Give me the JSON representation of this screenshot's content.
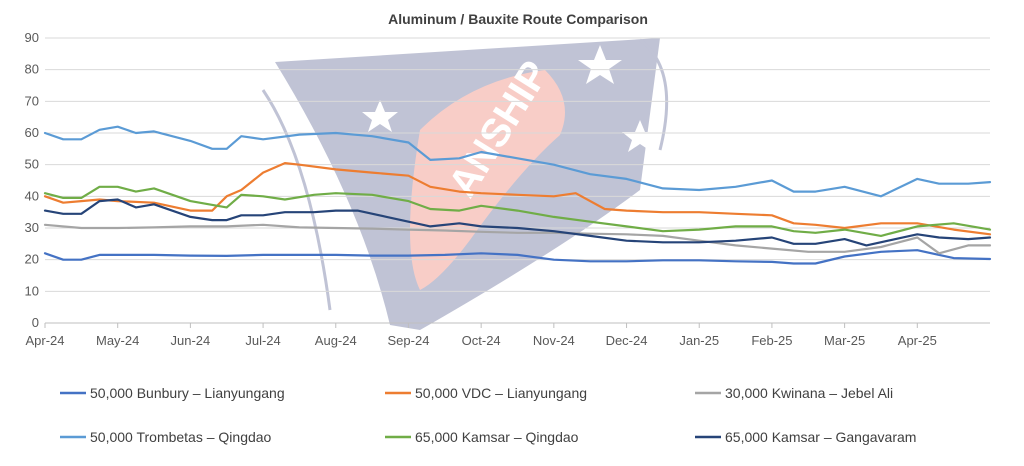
{
  "chart_data": {
    "type": "line",
    "title": "Aluminum / Bauxite Route Comparison",
    "xlabel": "",
    "ylabel": "",
    "ylim": [
      0,
      90
    ],
    "yticks": [
      0,
      10,
      20,
      30,
      40,
      50,
      60,
      70,
      80,
      90
    ],
    "xlim": [
      0,
      13
    ],
    "xtick_labels": [
      "Apr-24",
      "May-24",
      "Jun-24",
      "Jul-24",
      "Aug-24",
      "Sep-24",
      "Oct-24",
      "Nov-24",
      "Dec-24",
      "Jan-25",
      "Feb-25",
      "Mar-25",
      "Apr-25"
    ],
    "grid": "horizontal",
    "legend_position": "bottom",
    "series": [
      {
        "name": "50,000 Bunbury – Lianyungang",
        "color": "#4472c4",
        "x": [
          0,
          0.25,
          0.5,
          0.75,
          1,
          1.5,
          2,
          2.5,
          3,
          3.5,
          4,
          4.5,
          5,
          5.5,
          6,
          6.5,
          7,
          7.5,
          8,
          8.5,
          9,
          9.5,
          10,
          10.3,
          10.6,
          11,
          11.5,
          12,
          12.5,
          13
        ],
        "y": [
          22,
          20,
          20,
          21.5,
          21.5,
          21.5,
          21.3,
          21.2,
          21.5,
          21.5,
          21.5,
          21.3,
          21.3,
          21.5,
          22,
          21.5,
          20,
          19.5,
          19.5,
          19.8,
          19.8,
          19.5,
          19.3,
          18.8,
          18.8,
          21,
          22.5,
          23,
          20.5,
          20.2
        ]
      },
      {
        "name": "50,000 VDC – Lianyungang",
        "color": "#ed7d31",
        "x": [
          0,
          0.25,
          0.5,
          0.75,
          1,
          1.5,
          2,
          2.3,
          2.5,
          2.7,
          3,
          3.3,
          3.5,
          4,
          4.5,
          5,
          5.3,
          5.7,
          6,
          6.5,
          7,
          7.3,
          7.7,
          8,
          8.5,
          9,
          9.5,
          10,
          10.3,
          10.6,
          11,
          11.5,
          12,
          12.5,
          13
        ],
        "y": [
          40,
          38,
          38.5,
          39,
          38.5,
          38,
          35.5,
          35.5,
          40,
          42,
          47.5,
          50.5,
          50,
          48.5,
          47.5,
          46.5,
          43,
          41.5,
          41,
          40.5,
          40,
          41,
          36,
          35.5,
          35,
          35,
          34.5,
          34,
          31.5,
          31,
          30,
          31.5,
          31.5,
          29.5,
          28
        ]
      },
      {
        "name": "30,000 Kwinana – Jebel Ali",
        "color": "#a5a5a5",
        "x": [
          0,
          0.5,
          1,
          1.5,
          2,
          2.5,
          3,
          3.5,
          4,
          4.5,
          5,
          5.5,
          6,
          6.5,
          7,
          7.5,
          8,
          8.5,
          9,
          9.5,
          10,
          10.5,
          11,
          11.5,
          12,
          12.3,
          12.7,
          13
        ],
        "y": [
          31,
          30,
          30,
          30.2,
          30.5,
          30.5,
          31,
          30.2,
          30,
          29.8,
          29.5,
          29.2,
          28.8,
          28.5,
          28.5,
          28.2,
          28,
          27.5,
          26,
          24.5,
          23.5,
          22.5,
          22.5,
          24,
          27,
          22,
          24.5,
          24.5
        ]
      },
      {
        "name": "50,000 Trombetas – Qingdao",
        "color": "#5b9bd5",
        "x": [
          0,
          0.25,
          0.5,
          0.75,
          1,
          1.25,
          1.5,
          2,
          2.3,
          2.5,
          2.7,
          3,
          3.5,
          4,
          4.5,
          5,
          5.3,
          5.7,
          6,
          6.5,
          7,
          7.5,
          8,
          8.5,
          9,
          9.5,
          10,
          10.3,
          10.6,
          11,
          11.5,
          12,
          12.3,
          12.7,
          13
        ],
        "y": [
          60,
          58,
          58,
          61,
          62,
          60,
          60.5,
          57.5,
          55,
          55,
          59,
          58,
          59.5,
          60,
          59,
          57,
          51.5,
          52,
          54,
          52,
          50,
          47,
          45.5,
          42.5,
          42,
          43,
          45,
          41.5,
          41.5,
          43,
          40,
          45.5,
          44,
          44,
          44.5
        ]
      },
      {
        "name": "65,000 Kamsar – Qingdao",
        "color": "#70ad47",
        "x": [
          0,
          0.25,
          0.5,
          0.75,
          1,
          1.25,
          1.5,
          2,
          2.5,
          2.7,
          3,
          3.3,
          3.7,
          4,
          4.5,
          5,
          5.3,
          5.7,
          6,
          6.5,
          7,
          7.5,
          8,
          8.5,
          9,
          9.5,
          10,
          10.3,
          10.6,
          11,
          11.5,
          12,
          12.5,
          13
        ],
        "y": [
          41,
          39.5,
          39.5,
          43,
          43,
          41.5,
          42.5,
          38.5,
          36.5,
          40.5,
          40,
          39,
          40.5,
          41,
          40.5,
          38.5,
          36,
          35.5,
          37,
          35.5,
          33.5,
          32,
          30.5,
          29,
          29.5,
          30.5,
          30.5,
          29,
          28.5,
          29.5,
          27.5,
          30.5,
          31.5,
          29.5
        ]
      },
      {
        "name": "65,000 Kamsar – Gangavaram",
        "color": "#264478",
        "x": [
          0,
          0.25,
          0.5,
          0.75,
          1,
          1.25,
          1.5,
          2,
          2.3,
          2.5,
          2.7,
          3,
          3.3,
          3.7,
          4,
          4.3,
          4.7,
          5,
          5.3,
          5.7,
          6,
          6.5,
          7,
          7.5,
          8,
          8.5,
          9,
          9.5,
          10,
          10.3,
          10.6,
          11,
          11.3,
          11.7,
          12,
          12.3,
          12.7,
          13
        ],
        "y": [
          35.5,
          34.5,
          34.5,
          38.5,
          39,
          36.5,
          37.5,
          33.5,
          32.5,
          32.5,
          34,
          34,
          35,
          35,
          35.5,
          35.5,
          33.5,
          32,
          30.5,
          31.5,
          30.5,
          30,
          29,
          27.5,
          26,
          25.5,
          25.5,
          26,
          27,
          25,
          25,
          26.5,
          24.5,
          26.5,
          28,
          27,
          26.5,
          27
        ]
      }
    ]
  }
}
